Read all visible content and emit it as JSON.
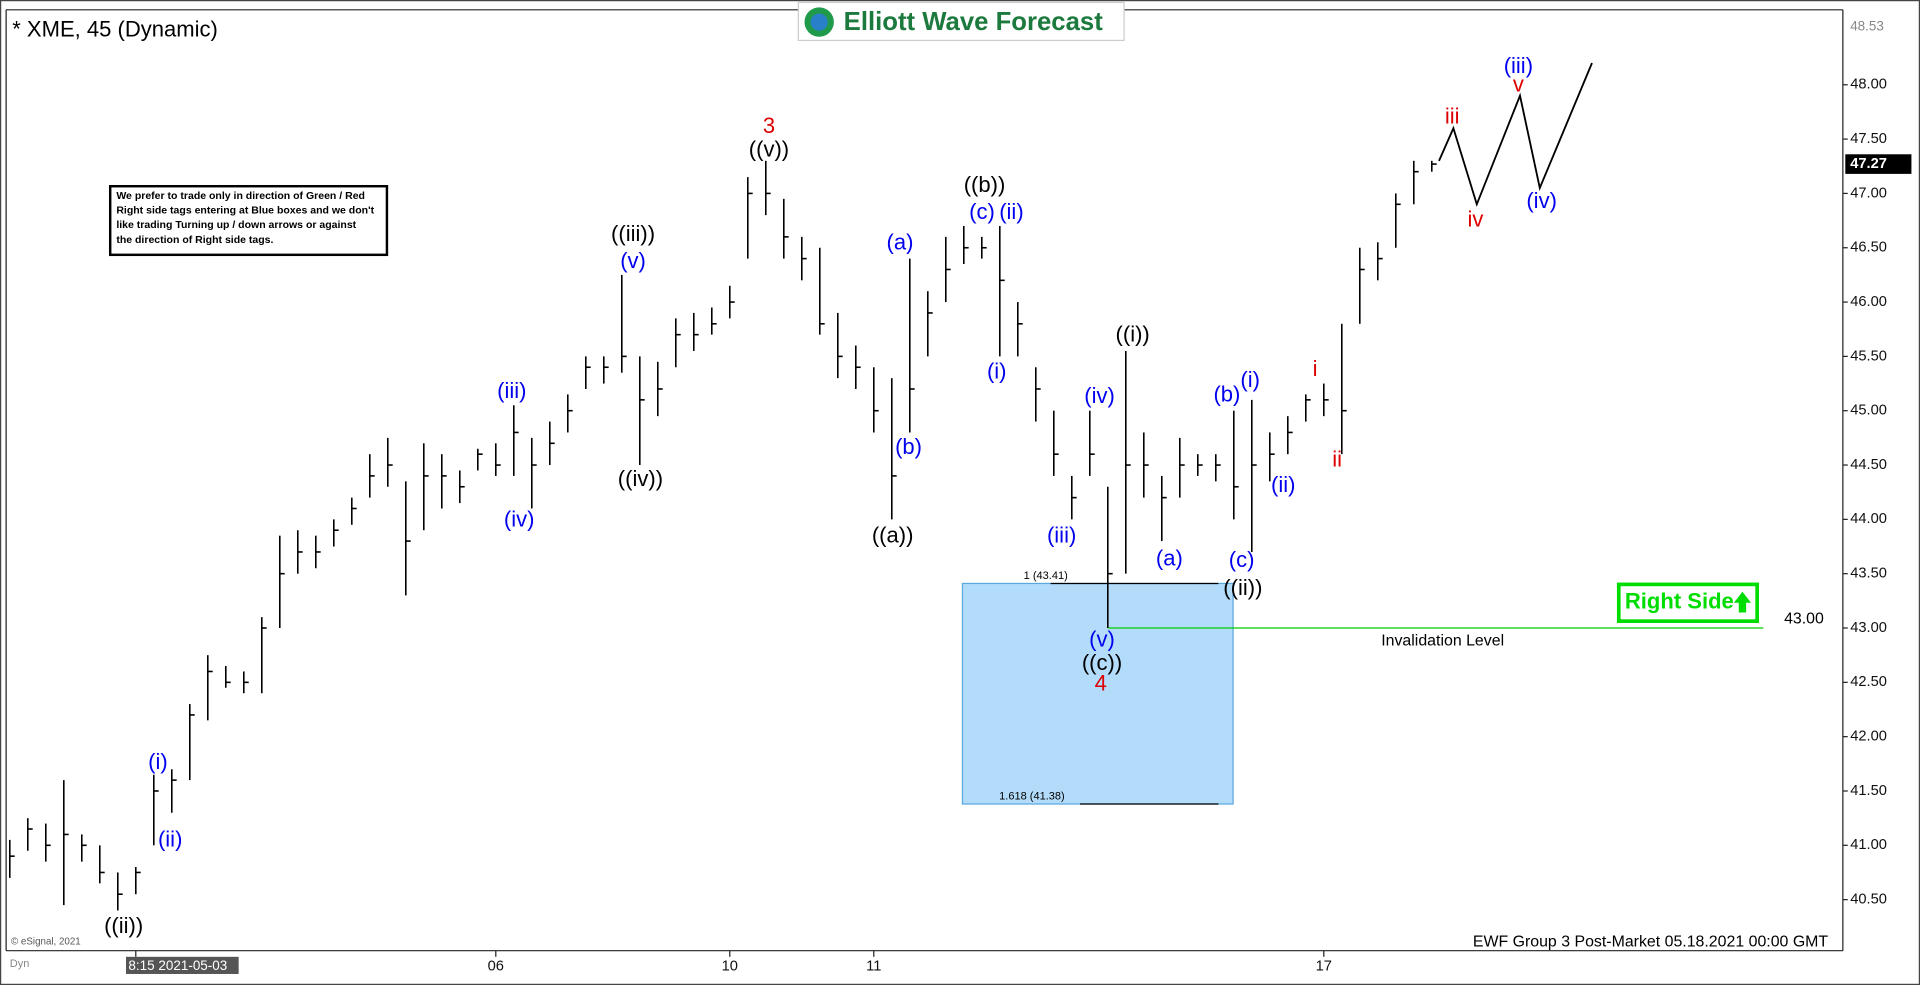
{
  "header": {
    "title": "* XME, 45 (Dynamic)",
    "logo": "Elliott Wave Forecast"
  },
  "footer": {
    "text": "EWF Group 3 Post-Market 05.18.2021 00:00 GMT",
    "copyright": "© eSignal, 2021",
    "mode": "Dyn"
  },
  "note": {
    "lines": [
      "We prefer to trade only in direction of Green / Red",
      "Right side tags entering at Blue boxes and we don't",
      "like trading Turning up / down arrows or against",
      "the direction of Right side tags."
    ]
  },
  "chart_data": {
    "type": "ohlc",
    "high": [
      41.05,
      41.25,
      41.2,
      41.6,
      41.1,
      41.0,
      40.75,
      40.8,
      41.65,
      41.7,
      42.3,
      42.75,
      42.65,
      42.6,
      43.1,
      43.85,
      43.9,
      43.85,
      44.0,
      44.2,
      44.6,
      44.75,
      44.35,
      44.7,
      44.6,
      44.45,
      44.65,
      44.7,
      45.05,
      44.75,
      44.9,
      45.15,
      45.5,
      45.5,
      46.25,
      45.5,
      45.45,
      45.85,
      45.9,
      45.95,
      46.15,
      47.15,
      47.3,
      46.95,
      46.6,
      46.5,
      45.9,
      45.6,
      45.4,
      45.3,
      46.4,
      46.1,
      46.6,
      46.7,
      46.6,
      46.7,
      46.0,
      45.4,
      45.0,
      44.4,
      45.0,
      44.3,
      45.55,
      44.8,
      44.4,
      44.75,
      44.6,
      44.6,
      45.0,
      45.1,
      44.8,
      44.95,
      45.15,
      45.25,
      45.8,
      46.5,
      46.55,
      47.0,
      47.3,
      47.3
    ],
    "low": [
      40.7,
      40.95,
      40.85,
      40.45,
      40.85,
      40.65,
      40.4,
      40.55,
      41.0,
      41.3,
      41.6,
      42.15,
      42.45,
      42.4,
      42.4,
      43.0,
      43.5,
      43.55,
      43.75,
      43.95,
      44.2,
      44.3,
      43.3,
      43.9,
      44.1,
      44.15,
      44.45,
      44.4,
      44.4,
      44.1,
      44.5,
      44.8,
      45.2,
      45.25,
      45.35,
      44.5,
      44.95,
      45.4,
      45.55,
      45.7,
      45.85,
      46.4,
      46.8,
      46.4,
      46.2,
      45.7,
      45.3,
      45.2,
      44.8,
      44.0,
      44.8,
      45.5,
      46.0,
      46.35,
      46.4,
      45.5,
      45.5,
      44.9,
      44.4,
      44.0,
      44.4,
      43.0,
      43.5,
      44.2,
      43.8,
      44.2,
      44.4,
      44.35,
      44.0,
      43.7,
      44.35,
      44.6,
      44.9,
      44.95,
      44.6,
      45.8,
      46.2,
      46.5,
      46.9,
      47.2
    ],
    "close": [
      40.9,
      41.15,
      41.0,
      41.1,
      41.0,
      40.75,
      40.55,
      40.75,
      41.5,
      41.6,
      42.2,
      42.6,
      42.5,
      42.5,
      43.0,
      43.5,
      43.7,
      43.7,
      43.9,
      44.1,
      44.4,
      44.5,
      43.8,
      44.4,
      44.4,
      44.3,
      44.6,
      44.5,
      44.8,
      44.5,
      44.7,
      45.0,
      45.4,
      45.4,
      45.5,
      45.1,
      45.2,
      45.7,
      45.7,
      45.8,
      46.0,
      47.0,
      47.0,
      46.6,
      46.4,
      45.8,
      45.5,
      45.4,
      45.0,
      44.4,
      45.2,
      45.9,
      46.3,
      46.5,
      46.5,
      46.2,
      45.8,
      45.2,
      44.6,
      44.2,
      44.6,
      43.5,
      44.5,
      44.5,
      44.2,
      44.5,
      44.5,
      44.5,
      44.3,
      44.5,
      44.6,
      44.8,
      45.1,
      45.1,
      45.0,
      46.3,
      46.4,
      46.9,
      47.2,
      47.27
    ],
    "color": "#000000",
    "ylim": [
      40.03,
      48.69
    ],
    "yticks": [
      {
        "value": 40.5,
        "label": "40.50"
      },
      {
        "value": 41,
        "label": "41.00"
      },
      {
        "value": 41.5,
        "label": "41.50"
      },
      {
        "value": 42,
        "label": "42.00"
      },
      {
        "value": 42.5,
        "label": "42.50"
      },
      {
        "value": 43,
        "label": "43.00"
      },
      {
        "value": 43.5,
        "label": "43.50"
      },
      {
        "value": 44,
        "label": "44.00"
      },
      {
        "value": 44.5,
        "label": "44.50"
      },
      {
        "value": 45,
        "label": "45.00"
      },
      {
        "value": 45.5,
        "label": "45.50"
      },
      {
        "value": 46,
        "label": "46.00"
      },
      {
        "value": 46.5,
        "label": "46.50"
      },
      {
        "value": 47,
        "label": "47.00"
      },
      {
        "value": 47.5,
        "label": "47.50"
      },
      {
        "value": 48,
        "label": "48.00"
      }
    ],
    "axis_top": {
      "value": 48.53,
      "label": "48.53"
    },
    "last_price": {
      "value": 47.27,
      "label": "47.27"
    },
    "xticks": [
      {
        "value": 7,
        "label": "8:15 2021-05-03"
      },
      {
        "value": 27,
        "label": "06"
      },
      {
        "value": 40,
        "label": "10"
      },
      {
        "value": 48,
        "label": "11"
      },
      {
        "value": 73,
        "label": "17"
      }
    ],
    "grid": false,
    "projection": {
      "x": [
        79.4,
        80.2,
        81.5,
        83.9,
        85.0,
        87.9
      ],
      "values": [
        47.3,
        47.6,
        46.9,
        47.9,
        47.05,
        48.2
      ],
      "color": "#000000"
    },
    "box": {
      "top": 43.41,
      "bottom": 41.38,
      "top_label": "1 (43.41)",
      "bottom_label": "1.618 (41.38)",
      "color": "#b3dcfb"
    },
    "invalidation": {
      "value": 43.0,
      "label": "43.00",
      "text": "Invalidation Level",
      "color": "#00cc00"
    },
    "right_side": {
      "text": "Right Side",
      "color": "#00dd00"
    },
    "wave_labels": [
      {
        "text": "((ii))",
        "color": "#000000"
      },
      {
        "text": "(i)",
        "color": "#0000ee"
      },
      {
        "text": "(ii)",
        "color": "#0000ee"
      },
      {
        "text": "(iii)",
        "color": "#0000ee"
      },
      {
        "text": "(iv)",
        "color": "#0000ee"
      },
      {
        "text": "((iii))",
        "color": "#000000"
      },
      {
        "text": "(v)",
        "color": "#0000ee"
      },
      {
        "text": "((iv))",
        "color": "#000000"
      },
      {
        "text": "3",
        "color": "#dd0000"
      },
      {
        "text": "((v))",
        "color": "#000000"
      },
      {
        "text": "((a))",
        "color": "#000000"
      },
      {
        "text": "(a)",
        "color": "#0000ee"
      },
      {
        "text": "(b)",
        "color": "#0000ee"
      },
      {
        "text": "((b))",
        "color": "#000000"
      },
      {
        "text": "(c)",
        "color": "#0000ee"
      },
      {
        "text": "(ii)",
        "color": "#0000ee"
      },
      {
        "text": "(i)",
        "color": "#0000ee"
      },
      {
        "text": "(iii)",
        "color": "#0000ee"
      },
      {
        "text": "(iv)",
        "color": "#0000ee"
      },
      {
        "text": "(v)",
        "color": "#0000ee"
      },
      {
        "text": "((c))",
        "color": "#000000"
      },
      {
        "text": "4",
        "color": "#dd0000"
      },
      {
        "text": "((i))",
        "color": "#000000"
      },
      {
        "text": "(a)",
        "color": "#0000ee"
      },
      {
        "text": "(b)",
        "color": "#0000ee"
      },
      {
        "text": "(i)",
        "color": "#0000ee"
      },
      {
        "text": "(c)",
        "color": "#0000ee"
      },
      {
        "text": "((ii))",
        "color": "#000000"
      },
      {
        "text": "(ii)",
        "color": "#0000ee"
      },
      {
        "text": "i",
        "color": "#dd0000"
      },
      {
        "text": "ii",
        "color": "#dd0000"
      },
      {
        "text": "iii",
        "color": "#dd0000"
      },
      {
        "text": "iv",
        "color": "#dd0000"
      },
      {
        "text": "v",
        "color": "#dd0000"
      },
      {
        "text": "(iii)",
        "color": "#0000ee"
      },
      {
        "text": "(iv)",
        "color": "#0000ee"
      }
    ]
  }
}
